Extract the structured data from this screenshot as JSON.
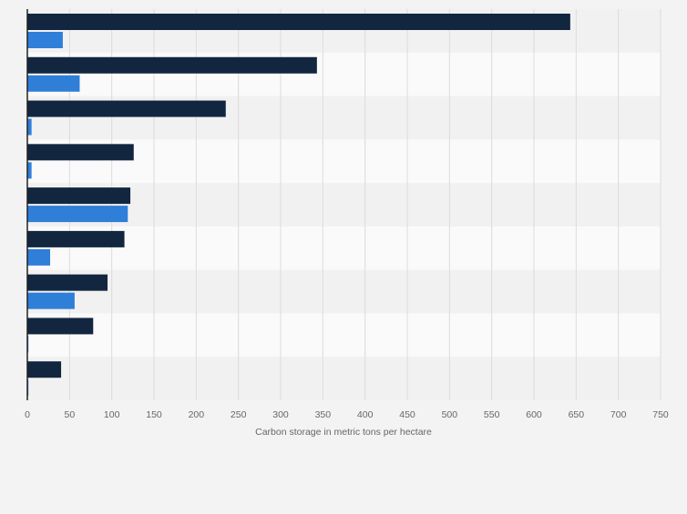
{
  "chart_data": {
    "type": "bar",
    "orientation": "horizontal",
    "categories": [
      "",
      "",
      "",
      "",
      "",
      "",
      "",
      "",
      ""
    ],
    "series": [
      {
        "color": "#13263f",
        "values": [
          643,
          343,
          235,
          126,
          122,
          115,
          95,
          78,
          40
        ]
      },
      {
        "color": "#2f7ed8",
        "values": [
          42,
          62,
          5,
          5,
          119,
          27,
          56,
          1,
          1
        ]
      }
    ],
    "xlim": [
      0,
      750
    ],
    "xticks": [
      0,
      50,
      100,
      150,
      200,
      250,
      300,
      350,
      400,
      450,
      500,
      550,
      600,
      650,
      700,
      750
    ],
    "xlabel": "Carbon storage in metric tons per hectare",
    "ylabel": "",
    "title": "",
    "grid": true,
    "legend": "none"
  }
}
